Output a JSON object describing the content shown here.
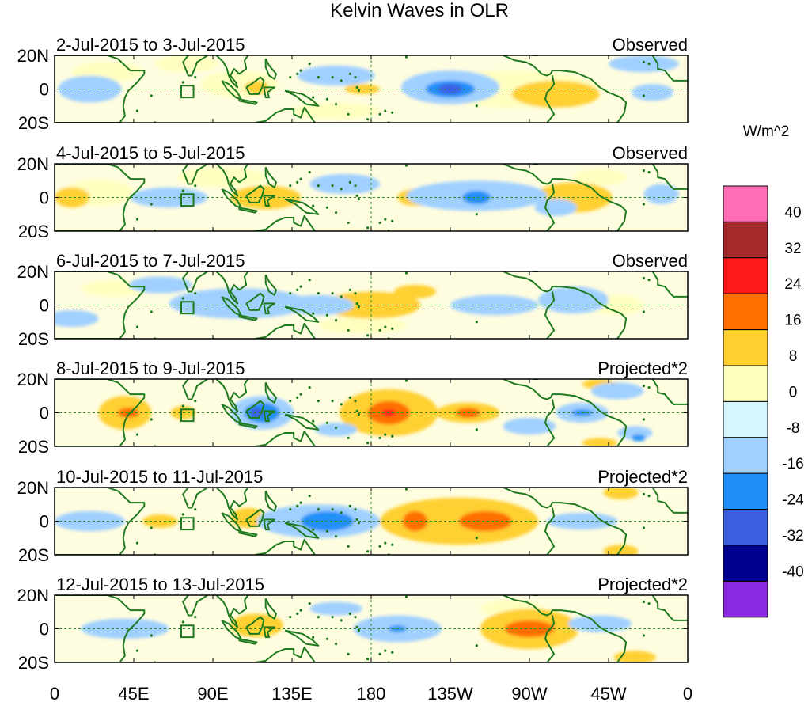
{
  "chart_data": {
    "type": "heatmap",
    "title": "Kelvin Waves in OLR",
    "x_tick_labels": [
      "0",
      "45E",
      "90E",
      "135E",
      "180",
      "135W",
      "90W",
      "45W",
      "0"
    ],
    "x_tick_lons": [
      0,
      45,
      90,
      135,
      180,
      225,
      270,
      315,
      360
    ],
    "x_range": [
      0,
      360
    ],
    "y_tick_labels": [
      "20N",
      "0",
      "20S"
    ],
    "y_tick_lats": [
      20,
      0,
      -20
    ],
    "y_range": [
      -20,
      20
    ],
    "colorbar": {
      "unit_label": "W/m^2",
      "boundary_labels": [
        "40",
        "32",
        "24",
        "16",
        "8",
        "0",
        "-8",
        "-16",
        "-24",
        "-32",
        "-40"
      ],
      "colors": [
        "#ff6eb4",
        "#a52a2a",
        "#ff1a1a",
        "#ff7000",
        "#ffd030",
        "#ffffc0",
        "#d6f5ff",
        "#a0d0ff",
        "#2090f8",
        "#3a60e0",
        "#00008e",
        "#8a2be2"
      ]
    },
    "panels": [
      {
        "date_range": "2-Jul-2015 to 3-Jul-2015",
        "kind": "Observed",
        "anomalies": [
          {
            "lon": 260,
            "lat": 0,
            "rx": 50,
            "ry": 11,
            "value": 4
          },
          {
            "lon": 285,
            "lat": -3,
            "rx": 25,
            "ry": 8,
            "value": 10
          },
          {
            "lon": 105,
            "lat": 3,
            "rx": 22,
            "ry": 8,
            "value": 6
          },
          {
            "lon": 115,
            "lat": 1,
            "rx": 7,
            "ry": 4,
            "value": 10
          },
          {
            "lon": 30,
            "lat": 10,
            "rx": 20,
            "ry": 6,
            "value": 4
          },
          {
            "lon": 75,
            "lat": 15,
            "rx": 18,
            "ry": 5,
            "value": 4
          },
          {
            "lon": 160,
            "lat": -13,
            "rx": 25,
            "ry": 5,
            "value": 4
          },
          {
            "lon": 175,
            "lat": 0,
            "rx": 10,
            "ry": 3,
            "value": 10
          },
          {
            "lon": 225,
            "lat": 1,
            "rx": 28,
            "ry": 10,
            "value": -10
          },
          {
            "lon": 225,
            "lat": 0,
            "rx": 14,
            "ry": 5,
            "value": -19
          },
          {
            "lon": 225,
            "lat": 0,
            "rx": 7,
            "ry": 3,
            "value": -27
          },
          {
            "lon": 20,
            "lat": 0,
            "rx": 18,
            "ry": 8,
            "value": -10
          },
          {
            "lon": 160,
            "lat": 8,
            "rx": 22,
            "ry": 6,
            "value": -10
          },
          {
            "lon": 335,
            "lat": 15,
            "rx": 20,
            "ry": 5,
            "value": -10
          },
          {
            "lon": 340,
            "lat": -2,
            "rx": 12,
            "ry": 5,
            "value": -10
          }
        ]
      },
      {
        "date_range": "4-Jul-2015 to 5-Jul-2015",
        "kind": "Observed",
        "anomalies": [
          {
            "lon": 120,
            "lat": 0,
            "rx": 20,
            "ry": 7,
            "value": 10
          },
          {
            "lon": 205,
            "lat": 0,
            "rx": 10,
            "ry": 5,
            "value": 10
          },
          {
            "lon": 295,
            "lat": 0,
            "rx": 22,
            "ry": 9,
            "value": 10
          },
          {
            "lon": 310,
            "lat": 12,
            "rx": 15,
            "ry": 5,
            "value": 4
          },
          {
            "lon": 10,
            "lat": 0,
            "rx": 10,
            "ry": 6,
            "value": 10
          },
          {
            "lon": 25,
            "lat": 3,
            "rx": 20,
            "ry": 8,
            "value": 4
          },
          {
            "lon": 95,
            "lat": 12,
            "rx": 25,
            "ry": 6,
            "value": 4
          },
          {
            "lon": 240,
            "lat": 1,
            "rx": 40,
            "ry": 9,
            "value": -10
          },
          {
            "lon": 240,
            "lat": 0,
            "rx": 8,
            "ry": 4,
            "value": -19
          },
          {
            "lon": 65,
            "lat": 0,
            "rx": 22,
            "ry": 6,
            "value": -10
          },
          {
            "lon": 165,
            "lat": 8,
            "rx": 20,
            "ry": 6,
            "value": -10
          },
          {
            "lon": 285,
            "lat": -6,
            "rx": 12,
            "ry": 5,
            "value": -10
          },
          {
            "lon": 345,
            "lat": 2,
            "rx": 10,
            "ry": 6,
            "value": -10
          }
        ]
      },
      {
        "date_range": "6-Jul-2015 to 7-Jul-2015",
        "kind": "Observed",
        "anomalies": [
          {
            "lon": 180,
            "lat": 0,
            "rx": 28,
            "ry": 8,
            "value": 10
          },
          {
            "lon": 205,
            "lat": 8,
            "rx": 12,
            "ry": 4,
            "value": 10
          },
          {
            "lon": 175,
            "lat": -12,
            "rx": 25,
            "ry": 5,
            "value": 4
          },
          {
            "lon": 35,
            "lat": 10,
            "rx": 20,
            "ry": 5,
            "value": 4
          },
          {
            "lon": 320,
            "lat": 0,
            "rx": 15,
            "ry": 6,
            "value": 4
          },
          {
            "lon": 105,
            "lat": 1,
            "rx": 40,
            "ry": 9,
            "value": -10
          },
          {
            "lon": 150,
            "lat": 0,
            "rx": 20,
            "ry": 6,
            "value": -10
          },
          {
            "lon": 250,
            "lat": 0,
            "rx": 25,
            "ry": 6,
            "value": -10
          },
          {
            "lon": 295,
            "lat": 3,
            "rx": 20,
            "ry": 8,
            "value": -10
          },
          {
            "lon": 10,
            "lat": -8,
            "rx": 15,
            "ry": 5,
            "value": -10
          },
          {
            "lon": 60,
            "lat": 12,
            "rx": 18,
            "ry": 5,
            "value": -10
          }
        ]
      },
      {
        "date_range": "8-Jul-2015 to 9-Jul-2015",
        "kind": "Projected*2",
        "anomalies": [
          {
            "lon": 190,
            "lat": 0,
            "rx": 28,
            "ry": 14,
            "value": 10
          },
          {
            "lon": 190,
            "lat": 0,
            "rx": 12,
            "ry": 7,
            "value": 19
          },
          {
            "lon": 190,
            "lat": 0,
            "rx": 4,
            "ry": 2,
            "value": 27
          },
          {
            "lon": 235,
            "lat": 0,
            "rx": 18,
            "ry": 6,
            "value": 10
          },
          {
            "lon": 235,
            "lat": 0,
            "rx": 7,
            "ry": 3,
            "value": 19
          },
          {
            "lon": 40,
            "lat": 0,
            "rx": 15,
            "ry": 10,
            "value": 10
          },
          {
            "lon": 42,
            "lat": 0,
            "rx": 6,
            "ry": 3,
            "value": 19
          },
          {
            "lon": 73,
            "lat": 0,
            "rx": 7,
            "ry": 4,
            "value": 10
          },
          {
            "lon": 310,
            "lat": 17,
            "rx": 10,
            "ry": 3,
            "value": 10
          },
          {
            "lon": 310,
            "lat": -18,
            "rx": 10,
            "ry": 3,
            "value": 10
          },
          {
            "lon": 118,
            "lat": 0,
            "rx": 18,
            "ry": 10,
            "value": -10
          },
          {
            "lon": 118,
            "lat": 0,
            "rx": 10,
            "ry": 6,
            "value": -19
          },
          {
            "lon": 115,
            "lat": 0,
            "rx": 4,
            "ry": 3,
            "value": -27
          },
          {
            "lon": 300,
            "lat": 0,
            "rx": 15,
            "ry": 6,
            "value": -10
          },
          {
            "lon": 300,
            "lat": 0,
            "rx": 6,
            "ry": 2,
            "value": -19
          },
          {
            "lon": 320,
            "lat": 13,
            "rx": 15,
            "ry": 5,
            "value": -10
          },
          {
            "lon": 330,
            "lat": -12,
            "rx": 10,
            "ry": 4,
            "value": -10
          },
          {
            "lon": 332,
            "lat": -15,
            "rx": 4,
            "ry": 2,
            "value": -19
          },
          {
            "lon": 270,
            "lat": -8,
            "rx": 15,
            "ry": 5,
            "value": -10
          },
          {
            "lon": 160,
            "lat": -10,
            "rx": 12,
            "ry": 4,
            "value": -10
          }
        ]
      },
      {
        "date_range": "10-Jul-2015 to 11-Jul-2015",
        "kind": "Projected*2",
        "anomalies": [
          {
            "lon": 230,
            "lat": 0,
            "rx": 45,
            "ry": 14,
            "value": 10
          },
          {
            "lon": 205,
            "lat": 0,
            "rx": 7,
            "ry": 6,
            "value": 19
          },
          {
            "lon": 245,
            "lat": 0,
            "rx": 15,
            "ry": 6,
            "value": 19
          },
          {
            "lon": 322,
            "lat": 17,
            "rx": 10,
            "ry": 4,
            "value": 10
          },
          {
            "lon": 322,
            "lat": -18,
            "rx": 10,
            "ry": 4,
            "value": 10
          },
          {
            "lon": 60,
            "lat": 0,
            "rx": 10,
            "ry": 4,
            "value": 10
          },
          {
            "lon": 110,
            "lat": 2,
            "rx": 10,
            "ry": 6,
            "value": 10
          },
          {
            "lon": 150,
            "lat": 0,
            "rx": 35,
            "ry": 10,
            "value": -10
          },
          {
            "lon": 155,
            "lat": 0,
            "rx": 15,
            "ry": 6,
            "value": -19
          },
          {
            "lon": 20,
            "lat": 0,
            "rx": 20,
            "ry": 6,
            "value": -10
          },
          {
            "lon": 300,
            "lat": 0,
            "rx": 20,
            "ry": 5,
            "value": -10
          }
        ]
      },
      {
        "date_range": "12-Jul-2015 to 13-Jul-2015",
        "kind": "Projected*2",
        "anomalies": [
          {
            "lon": 270,
            "lat": 0,
            "rx": 28,
            "ry": 12,
            "value": 10
          },
          {
            "lon": 270,
            "lat": 0,
            "rx": 14,
            "ry": 5,
            "value": 19
          },
          {
            "lon": 260,
            "lat": 12,
            "rx": 18,
            "ry": 5,
            "value": 4
          },
          {
            "lon": 115,
            "lat": 2,
            "rx": 15,
            "ry": 7,
            "value": 10
          },
          {
            "lon": 330,
            "lat": -17,
            "rx": 12,
            "ry": 4,
            "value": 10
          },
          {
            "lon": 195,
            "lat": 0,
            "rx": 25,
            "ry": 8,
            "value": -10
          },
          {
            "lon": 195,
            "lat": 0,
            "rx": 5,
            "ry": 2,
            "value": -19
          },
          {
            "lon": 40,
            "lat": 0,
            "rx": 25,
            "ry": 6,
            "value": -10
          },
          {
            "lon": 310,
            "lat": 3,
            "rx": 18,
            "ry": 5,
            "value": -10
          },
          {
            "lon": 160,
            "lat": 12,
            "rx": 15,
            "ry": 4,
            "value": -10
          }
        ]
      }
    ]
  }
}
